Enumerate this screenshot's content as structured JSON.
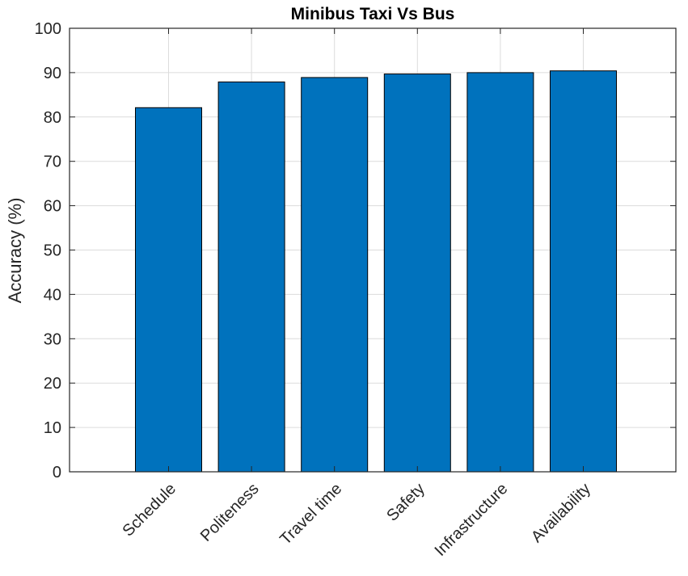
{
  "chart_data": {
    "type": "bar",
    "title": "Minibus Taxi Vs Bus",
    "xlabel": "",
    "ylabel": "Accuracy (%)",
    "categories": [
      "Schedule",
      "Politeness",
      "Travel time",
      "Safety",
      "Infrastructure",
      "Availability"
    ],
    "values": [
      82.1,
      87.9,
      88.9,
      89.7,
      90.0,
      90.4
    ],
    "ylim": [
      0,
      100
    ],
    "yticks": [
      0,
      10,
      20,
      30,
      40,
      50,
      60,
      70,
      80,
      90,
      100
    ],
    "grid": true,
    "bar_color": "#0072BD",
    "edge_color": "#000000"
  }
}
